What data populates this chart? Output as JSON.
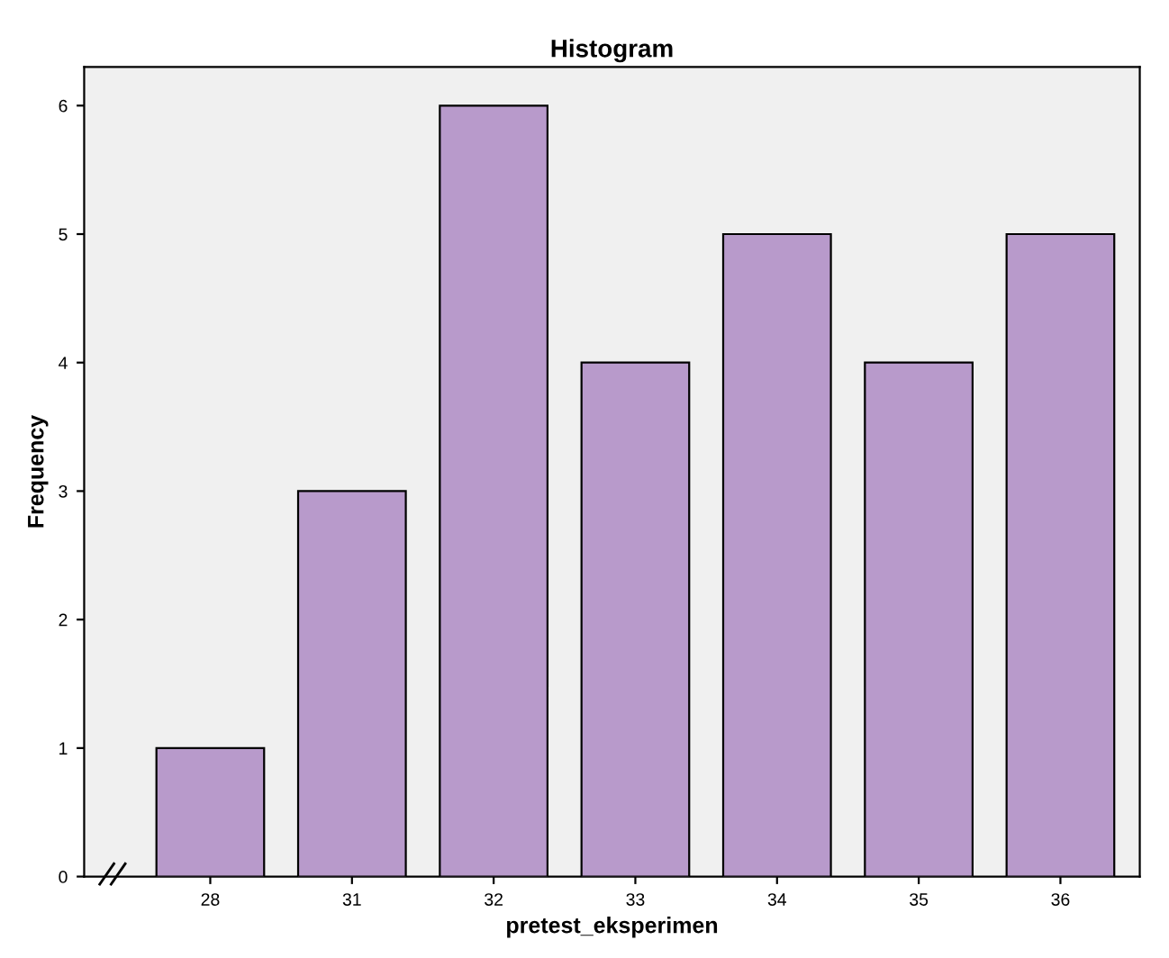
{
  "chart_data": {
    "type": "bar",
    "title": "Histogram",
    "xlabel": "pretest_eksperimen",
    "ylabel": "Frequency",
    "categories": [
      "28",
      "31",
      "32",
      "33",
      "34",
      "35",
      "36"
    ],
    "values": [
      1,
      3,
      6,
      4,
      5,
      4,
      5
    ],
    "color": "#b89acb",
    "ylim": [
      0,
      6.3
    ],
    "yticks": [
      0,
      1,
      2,
      3,
      4,
      5,
      6
    ],
    "grid": false
  }
}
